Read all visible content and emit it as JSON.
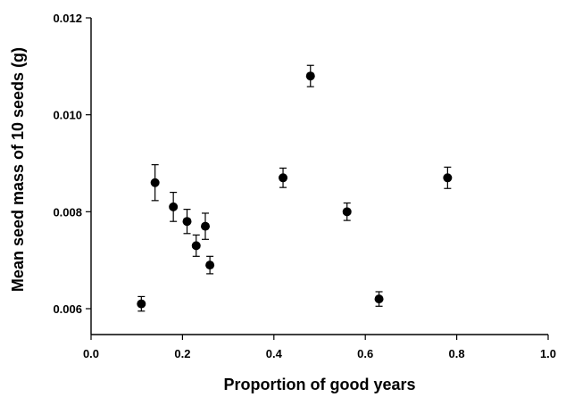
{
  "chart_data": {
    "type": "scatter",
    "xlabel": "Proportion of good years",
    "ylabel": "Mean seed mass of 10 seeds (g)",
    "xlim": [
      0.0,
      1.0
    ],
    "ylim": [
      0.0055,
      0.012
    ],
    "x_ticks": [
      0.0,
      0.2,
      0.4,
      0.6,
      0.8,
      1.0
    ],
    "x_tick_labels": [
      "0.0",
      "0.2",
      "0.4",
      "0.6",
      "0.8",
      "1.0"
    ],
    "y_ticks": [
      0.006,
      0.008,
      0.01,
      0.012
    ],
    "y_tick_labels": [
      "0.006",
      "0.008",
      "0.010",
      "0.012"
    ],
    "grid": false,
    "marker_color": "#000000",
    "points": [
      {
        "x": 0.11,
        "y": 0.0061,
        "err": 0.00015
      },
      {
        "x": 0.14,
        "y": 0.0086,
        "err": 0.00037
      },
      {
        "x": 0.18,
        "y": 0.0081,
        "err": 0.0003
      },
      {
        "x": 0.21,
        "y": 0.0078,
        "err": 0.00025
      },
      {
        "x": 0.23,
        "y": 0.0073,
        "err": 0.00022
      },
      {
        "x": 0.25,
        "y": 0.0077,
        "err": 0.00027
      },
      {
        "x": 0.26,
        "y": 0.0069,
        "err": 0.00018
      },
      {
        "x": 0.42,
        "y": 0.0087,
        "err": 0.0002
      },
      {
        "x": 0.48,
        "y": 0.0108,
        "err": 0.00022
      },
      {
        "x": 0.56,
        "y": 0.008,
        "err": 0.00018
      },
      {
        "x": 0.63,
        "y": 0.0062,
        "err": 0.00015
      },
      {
        "x": 0.78,
        "y": 0.0087,
        "err": 0.00022
      }
    ]
  }
}
